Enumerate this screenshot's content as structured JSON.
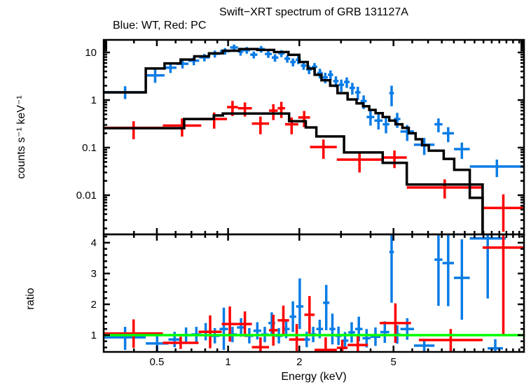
{
  "page": {
    "title": "Swift−XRT spectrum of GRB 131127A",
    "subtitle": "Blue: WT, Red: PC"
  },
  "chart_data": {
    "type": "scatter",
    "title": "Swift−XRT spectrum of GRB 131127A",
    "subtitle": "Blue: WT, Red: PC",
    "legend": {
      "blue": "WT",
      "red": "PC"
    },
    "grid": "off",
    "colors": {
      "wt": "#0a7ce6",
      "pc": "#ff0000",
      "model": "#000000",
      "unity": "#00ff00",
      "text": "#000000",
      "background": "#ffffff"
    },
    "x_axis": {
      "label": "Energy (keV)",
      "scale": "log",
      "min": 0.298,
      "max": 17.8,
      "major_ticks": [
        0.5,
        1,
        2,
        5
      ],
      "major_tick_labels": [
        "0.5",
        "1",
        "2",
        "5"
      ],
      "minor_ticks": [
        0.4,
        0.6,
        0.7,
        0.8,
        0.9,
        3,
        4,
        6,
        7,
        8,
        9,
        10,
        11,
        12,
        13,
        14,
        15,
        16,
        17
      ]
    },
    "top_panel": {
      "ylabel": "counts s⁻¹ keV⁻¹",
      "scale": "log",
      "min": 0.0015,
      "max": 18.4,
      "major_ticks": [
        10,
        1,
        0.1,
        0.01
      ],
      "major_tick_labels": [
        "10",
        "1",
        "0.1",
        "0.01"
      ],
      "wt_points": [
        [
          0.3,
          0.449,
          1.45,
          0.4,
          0.5
        ],
        [
          0.449,
          0.539,
          3.3,
          1.0,
          1.3
        ],
        [
          0.539,
          0.605,
          4.8,
          1.1,
          1.4
        ],
        [
          0.605,
          0.68,
          5.8,
          1.2,
          1.2
        ],
        [
          0.68,
          0.755,
          6.7,
          1.3,
          1.3
        ],
        [
          0.755,
          0.835,
          7.9,
          1.4,
          1.4
        ],
        [
          0.835,
          0.925,
          9.4,
          1.6,
          1.6
        ],
        [
          0.925,
          1.02,
          10.7,
          1.7,
          1.7
        ],
        [
          1.02,
          1.1,
          12.7,
          2.0,
          2.0
        ],
        [
          1.1,
          1.16,
          10.4,
          1.8,
          1.8
        ],
        [
          1.16,
          1.24,
          11.2,
          1.8,
          1.8
        ],
        [
          1.24,
          1.33,
          9.0,
          1.5,
          1.5
        ],
        [
          1.33,
          1.43,
          11.8,
          1.9,
          1.9
        ],
        [
          1.43,
          1.53,
          9.3,
          1.6,
          1.6
        ],
        [
          1.53,
          1.63,
          7.8,
          1.4,
          1.4
        ],
        [
          1.63,
          1.73,
          9.6,
          1.6,
          1.6
        ],
        [
          1.73,
          1.83,
          7.4,
          1.3,
          1.3
        ],
        [
          1.83,
          1.93,
          6.3,
          1.2,
          1.2
        ],
        [
          1.93,
          2.03,
          7.0,
          1.3,
          1.3
        ],
        [
          2.03,
          2.14,
          5.3,
          1.0,
          1.0
        ],
        [
          2.14,
          2.26,
          4.4,
          0.9,
          0.9
        ],
        [
          2.26,
          2.38,
          5.0,
          1.0,
          1.0
        ],
        [
          2.38,
          2.51,
          3.7,
          0.85,
          0.85
        ],
        [
          2.51,
          2.64,
          3.0,
          0.75,
          0.75
        ],
        [
          2.64,
          2.78,
          3.4,
          0.8,
          0.8
        ],
        [
          2.78,
          2.93,
          2.5,
          0.65,
          0.65
        ],
        [
          2.93,
          3.09,
          2.1,
          0.6,
          0.6
        ],
        [
          3.09,
          3.26,
          2.4,
          0.6,
          0.6
        ],
        [
          3.26,
          3.44,
          1.8,
          0.5,
          0.5
        ],
        [
          3.44,
          3.63,
          1.45,
          0.45,
          0.45
        ],
        [
          3.63,
          3.85,
          0.95,
          0.3,
          0.3
        ],
        [
          3.85,
          4.15,
          0.44,
          0.15,
          0.15
        ],
        [
          4.15,
          4.5,
          0.37,
          0.13,
          0.13
        ],
        [
          4.5,
          4.8,
          0.31,
          0.11,
          0.11
        ],
        [
          4.8,
          5.02,
          1.4,
          0.66,
          0.6
        ],
        [
          5.02,
          5.35,
          0.4,
          0.14,
          0.14
        ],
        [
          5.35,
          6.1,
          0.218,
          0.08,
          0.08
        ],
        [
          6.1,
          7.45,
          0.115,
          0.045,
          0.045
        ],
        [
          7.45,
          8.05,
          0.31,
          0.1,
          0.1
        ],
        [
          8.05,
          9.0,
          0.2,
          0.07,
          0.07
        ],
        [
          9.0,
          10.5,
          0.093,
          0.035,
          0.035
        ],
        [
          10.5,
          17.8,
          0.04,
          0.016,
          0.016
        ]
      ],
      "pc_points": [
        [
          0.3,
          0.53,
          0.26,
          0.11,
          0.1
        ],
        [
          0.53,
          0.77,
          0.29,
          0.12,
          0.12
        ],
        [
          0.77,
          0.99,
          0.4,
          0.15,
          0.15
        ],
        [
          0.99,
          1.1,
          0.71,
          0.25,
          0.25
        ],
        [
          1.1,
          1.26,
          0.67,
          0.22,
          0.22
        ],
        [
          1.26,
          1.49,
          0.32,
          0.13,
          0.13
        ],
        [
          1.49,
          1.62,
          0.6,
          0.22,
          0.22
        ],
        [
          1.62,
          1.74,
          0.67,
          0.25,
          0.25
        ],
        [
          1.74,
          1.98,
          0.31,
          0.12,
          0.12
        ],
        [
          1.98,
          2.22,
          0.43,
          0.16,
          0.16
        ],
        [
          2.22,
          2.88,
          0.103,
          0.045,
          0.045
        ],
        [
          2.88,
          4.48,
          0.056,
          0.026,
          0.026
        ],
        [
          4.48,
          5.69,
          0.062,
          0.025,
          0.025
        ],
        [
          5.69,
          11.9,
          0.0145,
          0.006,
          0.007
        ],
        [
          11.9,
          17.8,
          0.0054,
          0.0037,
          0.005
        ]
      ],
      "wt_model": [
        [
          0.3,
          0.449,
          1.45
        ],
        [
          0.449,
          0.539,
          4.6
        ],
        [
          0.539,
          0.63,
          5.9
        ],
        [
          0.63,
          0.72,
          7.1
        ],
        [
          0.72,
          0.83,
          8.3
        ],
        [
          0.83,
          0.95,
          9.6
        ],
        [
          0.95,
          1.115,
          10.9
        ],
        [
          1.115,
          1.33,
          11.8
        ],
        [
          1.33,
          1.565,
          11.3
        ],
        [
          1.565,
          1.8,
          10.2
        ],
        [
          1.8,
          2.0,
          8.9
        ],
        [
          2.0,
          2.17,
          6.3
        ],
        [
          2.17,
          2.32,
          4.6
        ],
        [
          2.32,
          2.48,
          3.4
        ],
        [
          2.48,
          2.7,
          2.6
        ],
        [
          2.7,
          2.9,
          2.0
        ],
        [
          2.9,
          3.2,
          1.4
        ],
        [
          3.2,
          3.49,
          1.03
        ],
        [
          3.49,
          3.72,
          0.85
        ],
        [
          3.72,
          3.95,
          0.74
        ],
        [
          3.95,
          4.2,
          0.62
        ],
        [
          4.2,
          4.5,
          0.53
        ],
        [
          4.5,
          4.8,
          0.44
        ],
        [
          4.8,
          5.1,
          0.37
        ],
        [
          5.1,
          5.45,
          0.31
        ],
        [
          5.45,
          5.8,
          0.26
        ],
        [
          5.8,
          6.2,
          0.2
        ],
        [
          6.2,
          6.6,
          0.15
        ],
        [
          6.6,
          7.05,
          0.112
        ],
        [
          7.05,
          8.15,
          0.086
        ],
        [
          8.15,
          9.03,
          0.058
        ],
        [
          9.03,
          10.5,
          0.034
        ],
        [
          10.5,
          11.9,
          0.0088
        ]
      ],
      "pc_model": [
        [
          0.3,
          0.652,
          0.255
        ],
        [
          0.652,
          0.87,
          0.4
        ],
        [
          0.87,
          0.95,
          0.475
        ],
        [
          0.95,
          1.81,
          0.52
        ],
        [
          1.81,
          2.13,
          0.36
        ],
        [
          2.13,
          2.36,
          0.266
        ],
        [
          2.36,
          3.09,
          0.172
        ],
        [
          3.09,
          4.5,
          0.079
        ],
        [
          4.5,
          5.69,
          0.048
        ],
        [
          5.69,
          11.9,
          0.0167
        ]
      ]
    },
    "ratio_panel": {
      "ylabel": "ratio",
      "scale": "linear",
      "min": 0.455,
      "max": 4.27,
      "major_ticks": [
        1,
        2,
        3,
        4
      ],
      "major_tick_labels": [
        "1",
        "2",
        "3",
        "4"
      ],
      "minor_tick_step": 0.2,
      "unity_line": 1,
      "wt_points": [
        [
          0.3,
          0.449,
          0.93,
          0.41,
          0.34
        ],
        [
          0.449,
          0.56,
          0.73,
          0.25,
          0.25
        ],
        [
          0.56,
          0.63,
          0.86,
          0.25,
          0.25
        ],
        [
          0.63,
          0.7,
          1.0,
          0.25,
          0.25
        ],
        [
          0.7,
          0.77,
          1.02,
          0.25,
          0.25
        ],
        [
          0.77,
          0.84,
          1.11,
          0.28,
          0.28
        ],
        [
          0.84,
          0.92,
          0.98,
          0.25,
          0.25
        ],
        [
          0.92,
          1.0,
          1.2,
          0.68,
          0.69
        ],
        [
          1.0,
          1.09,
          1.02,
          0.25,
          0.25
        ],
        [
          1.09,
          1.18,
          1.25,
          0.3,
          0.3
        ],
        [
          1.18,
          1.28,
          0.98,
          0.25,
          0.25
        ],
        [
          1.28,
          1.38,
          1.14,
          0.28,
          0.28
        ],
        [
          1.38,
          1.48,
          1.02,
          0.25,
          0.25
        ],
        [
          1.48,
          1.58,
          1.39,
          0.35,
          0.35
        ],
        [
          1.58,
          1.7,
          0.98,
          0.25,
          0.25
        ],
        [
          1.7,
          1.82,
          1.2,
          0.3,
          0.3
        ],
        [
          1.82,
          1.94,
          1.6,
          0.5,
          0.5
        ],
        [
          1.94,
          2.08,
          1.93,
          0.73,
          0.91
        ],
        [
          2.08,
          2.22,
          0.86,
          0.25,
          0.25
        ],
        [
          2.22,
          2.36,
          1.02,
          0.25,
          0.25
        ],
        [
          2.36,
          2.52,
          1.2,
          0.3,
          0.3
        ],
        [
          2.52,
          2.68,
          2.05,
          0.89,
          0.58
        ],
        [
          2.68,
          2.84,
          1.2,
          0.5,
          0.5
        ],
        [
          2.84,
          3.02,
          0.98,
          0.3,
          0.3
        ],
        [
          3.02,
          3.22,
          0.82,
          0.28,
          0.28
        ],
        [
          3.22,
          3.44,
          1.09,
          0.33,
          0.33
        ],
        [
          3.44,
          3.7,
          1.2,
          0.4,
          0.4
        ],
        [
          3.7,
          4.0,
          0.9,
          0.3,
          0.3
        ],
        [
          4.0,
          4.4,
          0.95,
          0.3,
          0.3
        ],
        [
          4.4,
          4.8,
          1.1,
          0.35,
          0.35
        ],
        [
          4.8,
          5.02,
          3.7,
          1.65,
          0.6
        ],
        [
          5.02,
          5.35,
          1.02,
          0.3,
          0.3
        ],
        [
          5.35,
          6.1,
          1.2,
          0.35,
          0.35
        ],
        [
          6.1,
          7.45,
          0.66,
          0.22,
          0.22
        ],
        [
          7.45,
          8.05,
          3.45,
          1.5,
          0.85
        ],
        [
          8.05,
          9.0,
          3.34,
          1.4,
          0.95
        ],
        [
          9.0,
          10.5,
          2.86,
          1.36,
          1.25
        ],
        [
          10.5,
          14.9,
          4.14,
          1.95,
          0.3
        ],
        [
          12.5,
          14.5,
          0.57,
          0.3,
          0.3
        ]
      ],
      "pc_points": [
        [
          0.3,
          0.53,
          1.05,
          0.46,
          0.46
        ],
        [
          0.53,
          0.75,
          0.75,
          0.2,
          0.2
        ],
        [
          0.75,
          0.94,
          1.11,
          0.54,
          0.53
        ],
        [
          0.94,
          1.1,
          1.36,
          0.57,
          0.57
        ],
        [
          1.1,
          1.26,
          1.36,
          0.41,
          0.41
        ],
        [
          1.26,
          1.49,
          0.61,
          0.3,
          0.32
        ],
        [
          1.49,
          1.62,
          1.16,
          0.5,
          0.5
        ],
        [
          1.62,
          1.81,
          1.48,
          0.48,
          0.48
        ],
        [
          1.81,
          2.1,
          0.86,
          0.5,
          0.5
        ],
        [
          2.1,
          2.32,
          1.66,
          0.61,
          0.61
        ],
        [
          2.32,
          2.88,
          0.52,
          0.3,
          0.41
        ],
        [
          2.88,
          3.2,
          0.59,
          0.25,
          0.25
        ],
        [
          3.2,
          3.9,
          0.68,
          0.3,
          0.3
        ],
        [
          4.37,
          5.93,
          1.39,
          0.64,
          0.64
        ],
        [
          6.4,
          11.9,
          0.84,
          0.36,
          0.36
        ],
        [
          11.9,
          17.8,
          3.84,
          2.82,
          0.6
        ]
      ]
    }
  }
}
